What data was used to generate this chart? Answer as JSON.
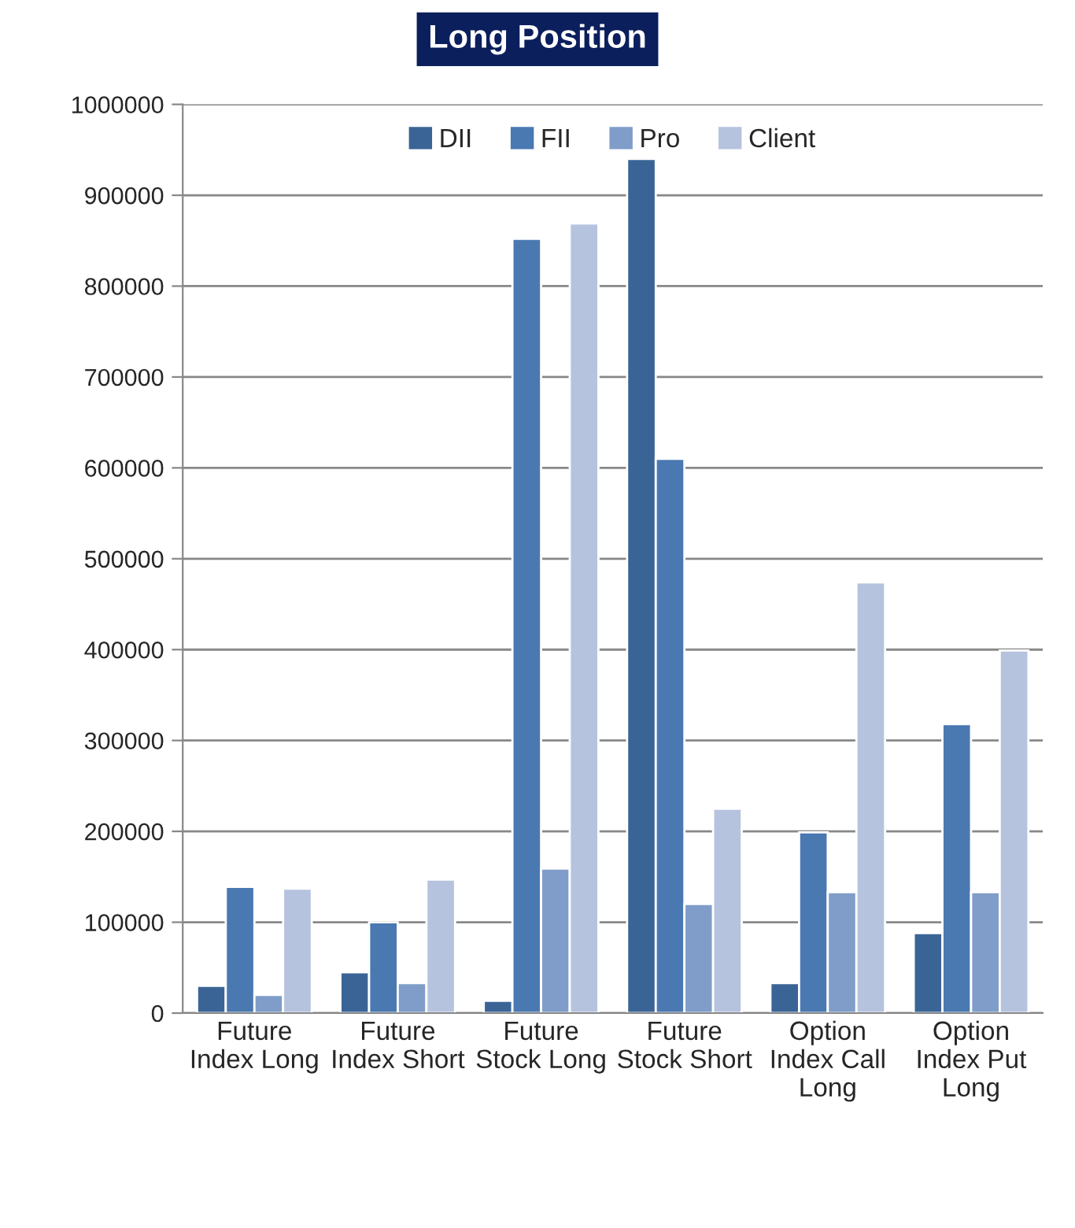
{
  "chart_data": {
    "type": "bar",
    "title": "Long Position",
    "categories": [
      "Future\nIndex Long",
      "Future\nIndex Short",
      "Future\nStock Long",
      "Future\nStock Short",
      "Option\nIndex Call\nLong",
      "Option\nIndex Put\nLong"
    ],
    "series": [
      {
        "name": "DII",
        "color": "#3b6496",
        "values": [
          30000,
          45000,
          13500,
          940000,
          33000,
          88000
        ]
      },
      {
        "name": "FII",
        "color": "#4a79b1",
        "values": [
          139000,
          100000,
          852000,
          610000,
          199000,
          318000
        ]
      },
      {
        "name": "Pro",
        "color": "#809dc9",
        "values": [
          20000,
          33000,
          159000,
          120000,
          133000,
          133000
        ]
      },
      {
        "name": "Client",
        "color": "#b5c3de",
        "values": [
          137000,
          147000,
          869000,
          225000,
          474000,
          399000
        ]
      }
    ],
    "ylim": [
      0,
      1000000
    ],
    "yticks": [
      0,
      100000,
      200000,
      300000,
      400000,
      500000,
      600000,
      700000,
      800000,
      900000,
      1000000
    ],
    "grid": "y",
    "legend": "top"
  }
}
